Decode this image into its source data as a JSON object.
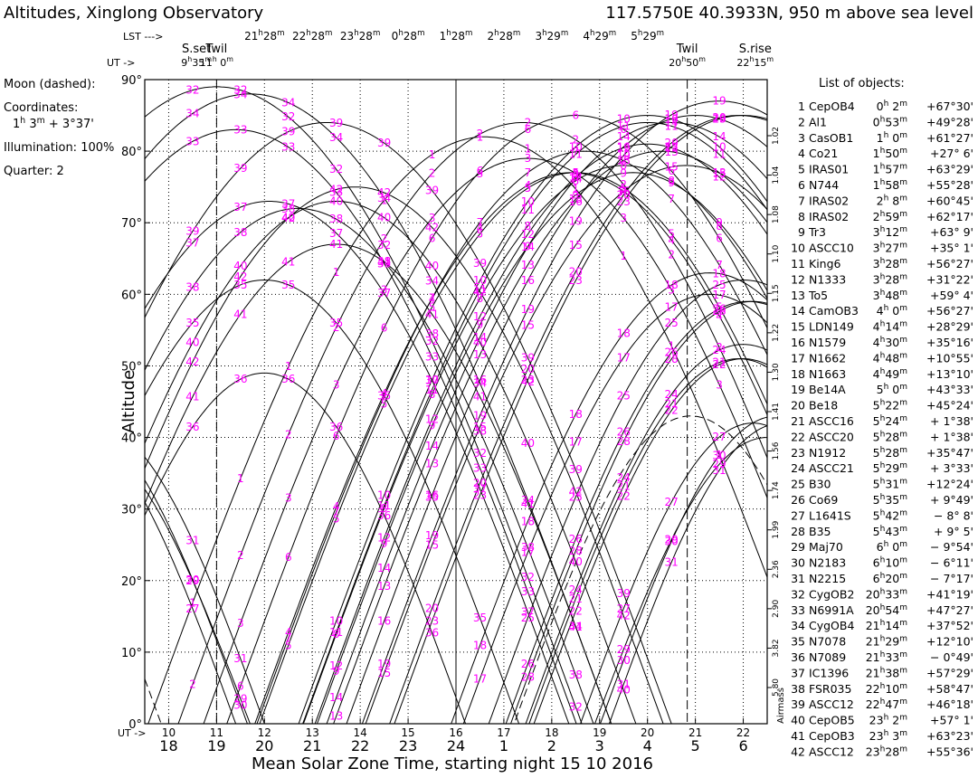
{
  "chart_data": {
    "type": "line",
    "title": "Altitudes, Xinglong Observatory",
    "site": "117.5750E  40.3933N,  950 m above sea level",
    "ylabel": "Altitude",
    "xlabel": "Mean Solar Zone Time, starting night 15 10 2016",
    "ylim": [
      0,
      90
    ],
    "y_ticks": [
      "0°",
      "10°",
      "20°",
      "30°",
      "40°",
      "50°",
      "60°",
      "70°",
      "80°",
      "90°"
    ],
    "x_ticks_local": [
      "18",
      "19",
      "20",
      "21",
      "22",
      "23",
      "24",
      "1",
      "2",
      "3",
      "4",
      "5",
      "6"
    ],
    "x_ticks_ut": [
      "10",
      "11",
      "12",
      "13",
      "14",
      "15",
      "16",
      "17",
      "18",
      "19",
      "20",
      "21",
      "22"
    ],
    "lst_ticks": [
      "21h28m",
      "22h28m",
      "23h28m",
      "0h28m",
      "1h28m",
      "2h28m",
      "3h29m",
      "4h29m",
      "5h29m"
    ],
    "lst_label": "LST --->",
    "ut_label": "UT ->",
    "ut_header_label": "UT ->",
    "markers": {
      "sunset": {
        "label": "S.set",
        "time": "9h35m",
        "x": 18.58
      },
      "twil_start": {
        "label": "Twil",
        "time": "11h 0m",
        "x": 19.0
      },
      "midnight": {
        "x": 24.0
      },
      "twil_end": {
        "label": "Twil",
        "time": "20h50m",
        "x": 28.83
      },
      "sunrise": {
        "label": "S.rise",
        "time": "22h15m",
        "x": 30.25
      }
    },
    "airmass_label": "Airmass",
    "airmass_ticks": [
      "1.02",
      "1.04",
      "1.08",
      "1.10",
      "1.15",
      "1.22",
      "1.30",
      "1.41",
      "1.56",
      "1.74",
      "1.99",
      "2.36",
      "2.90",
      "3.82",
      "5.80"
    ],
    "moon": {
      "title": "Moon (dashed):",
      "coords_label": "Coordinates:",
      "coords": "1h 3m  + 3°37'",
      "illumination": "Illumination: 100%",
      "quarter": "Quarter: 2",
      "peak": 43,
      "transit": 28.9
    },
    "list_title": "List of objects:",
    "objects": [
      {
        "n": "1",
        "name": "CepOB4",
        "ra": "0h 2m",
        "dec": "+67°30'",
        "peak": 82,
        "transit": 24.6
      },
      {
        "n": "2",
        "name": "Al1",
        "ra": "0h53m",
        "dec": "+49°28'",
        "peak": 84,
        "transit": 25.4
      },
      {
        "n": "3",
        "name": "CasOB1",
        "ra": "1h 0m",
        "dec": "+61°27'",
        "peak": 79,
        "transit": 25.5
      },
      {
        "n": "4",
        "name": "Co21",
        "ra": "1h50m",
        "dec": "+27° 6'",
        "peak": 77,
        "transit": 26.4
      },
      {
        "n": "5",
        "name": "IRAS01",
        "ra": "1h57m",
        "dec": "+63°29'",
        "peak": 77,
        "transit": 26.5
      },
      {
        "n": "6",
        "name": "N744",
        "ra": "1h58m",
        "dec": "+55°28'",
        "peak": 85,
        "transit": 26.5
      },
      {
        "n": "7",
        "name": "IRAS02",
        "ra": "2h 8m",
        "dec": "+60°45'",
        "peak": 80,
        "transit": 26.7
      },
      {
        "n": "8",
        "name": "IRAS02",
        "ra": "2h59m",
        "dec": "+62°17'",
        "peak": 78,
        "transit": 27.5
      },
      {
        "n": "9",
        "name": "Tr3",
        "ra": "3h12m",
        "dec": "+63° 9'",
        "peak": 77,
        "transit": 27.7
      },
      {
        "n": "10",
        "name": "ASCC10",
        "ra": "3h27m",
        "dec": "+35° 1'",
        "peak": 85,
        "transit": 28.0
      },
      {
        "n": "11",
        "name": "King6",
        "ra": "3h28m",
        "dec": "+56°27'",
        "peak": 84,
        "transit": 28.0
      },
      {
        "n": "12",
        "name": "N1333",
        "ra": "3h28m",
        "dec": "+31°22'",
        "peak": 81,
        "transit": 28.0
      },
      {
        "n": "13",
        "name": "To5",
        "ra": "3h48m",
        "dec": "+59° 4'",
        "peak": 80,
        "transit": 28.3
      },
      {
        "n": "14",
        "name": "CamOB3",
        "ra": "4h 0m",
        "dec": "+56°27'",
        "peak": 84,
        "transit": 28.5
      },
      {
        "n": "15",
        "name": "LDN149",
        "ra": "4h14m",
        "dec": "+28°29'",
        "peak": 78,
        "transit": 28.8
      },
      {
        "n": "16",
        "name": "N1579",
        "ra": "4h30m",
        "dec": "+35°16'",
        "peak": 85,
        "transit": 29.0
      },
      {
        "n": "17",
        "name": "N1662",
        "ra": "4h48m",
        "dec": "+10°55'",
        "peak": 60,
        "transit": 29.3
      },
      {
        "n": "18",
        "name": "N1663",
        "ra": "4h49m",
        "dec": "+13°10'",
        "peak": 63,
        "transit": 29.3
      },
      {
        "n": "19",
        "name": "Be14A",
        "ra": "5h 0m",
        "dec": "+43°33'",
        "peak": 87,
        "transit": 29.5
      },
      {
        "n": "20",
        "name": "Be18",
        "ra": "5h22m",
        "dec": "+45°24'",
        "peak": 85,
        "transit": 29.9
      },
      {
        "n": "21",
        "name": "ASCC16",
        "ra": "5h24m",
        "dec": "+ 1°38'",
        "peak": 51,
        "transit": 29.9
      },
      {
        "n": "22",
        "name": "ASCC20",
        "ra": "5h28m",
        "dec": "+ 1°38'",
        "peak": 51,
        "transit": 30.0
      },
      {
        "n": "23",
        "name": "N1912",
        "ra": "5h28m",
        "dec": "+35°47'",
        "peak": 85,
        "transit": 30.0
      },
      {
        "n": "24",
        "name": "ASCC21",
        "ra": "5h29m",
        "dec": "+ 3°33'",
        "peak": 53,
        "transit": 30.0
      },
      {
        "n": "25",
        "name": "B30",
        "ra": "5h31m",
        "dec": "+12°24'",
        "peak": 62,
        "transit": 30.0
      },
      {
        "n": "26",
        "name": "Co69",
        "ra": "5h35m",
        "dec": "+ 9°49'",
        "peak": 59,
        "transit": 30.1
      },
      {
        "n": "27",
        "name": "L1641S",
        "ra": "5h42m",
        "dec": "− 8° 8'",
        "peak": 42,
        "transit": 30.2
      },
      {
        "n": "28",
        "name": "B35",
        "ra": "5h43m",
        "dec": "+ 9° 5'",
        "peak": 59,
        "transit": 30.2
      },
      {
        "n": "29",
        "name": "Maj70",
        "ra": "6h 0m",
        "dec": "− 9°54'",
        "peak": 40,
        "transit": 30.5
      },
      {
        "n": "30",
        "name": "N2183",
        "ra": "6h10m",
        "dec": "− 6°11'",
        "peak": 43,
        "transit": 30.7
      },
      {
        "n": "31",
        "name": "N2215",
        "ra": "6h20m",
        "dec": "− 7°17'",
        "peak": 42,
        "transit": 30.8
      },
      {
        "n": "32",
        "name": "CygOB2",
        "ra": "20h33m",
        "dec": "+41°19'",
        "peak": 89,
        "transit": 19.0
      },
      {
        "n": "33",
        "name": "N6991A",
        "ra": "20h54m",
        "dec": "+47°27'",
        "peak": 83,
        "transit": 19.4
      },
      {
        "n": "34",
        "name": "CygOB4",
        "ra": "21h14m",
        "dec": "+37°52'",
        "peak": 88,
        "transit": 19.7
      },
      {
        "n": "35",
        "name": "N7078",
        "ra": "21h29m",
        "dec": "+12°10'",
        "peak": 62,
        "transit": 20.0
      },
      {
        "n": "36",
        "name": "N7089",
        "ra": "21h33m",
        "dec": "− 0°49'",
        "peak": 49,
        "transit": 20.0
      },
      {
        "n": "37",
        "name": "IC1396",
        "ra": "21h38m",
        "dec": "+57°29'",
        "peak": 73,
        "transit": 20.1
      },
      {
        "n": "38",
        "name": "FSR035",
        "ra": "22h10m",
        "dec": "+58°47'",
        "peak": 72,
        "transit": 20.7
      },
      {
        "n": "39",
        "name": "ASCC12",
        "ra": "22h47m",
        "dec": "+46°18'",
        "peak": 84,
        "transit": 21.3
      },
      {
        "n": "40",
        "name": "CepOB5",
        "ra": "23h 2m",
        "dec": "+57° 1'",
        "peak": 73,
        "transit": 21.5
      },
      {
        "n": "41",
        "name": "CepOB3",
        "ra": "23h 3m",
        "dec": "+63°23'",
        "peak": 67,
        "transit": 21.5
      },
      {
        "n": "42",
        "name": "ASCC12",
        "ra": "23h28m",
        "dec": "+55°36'",
        "peak": 75,
        "transit": 21.9
      }
    ],
    "grid": true,
    "colors": {
      "labels": "#ff00ff",
      "lines": "#000000"
    }
  }
}
